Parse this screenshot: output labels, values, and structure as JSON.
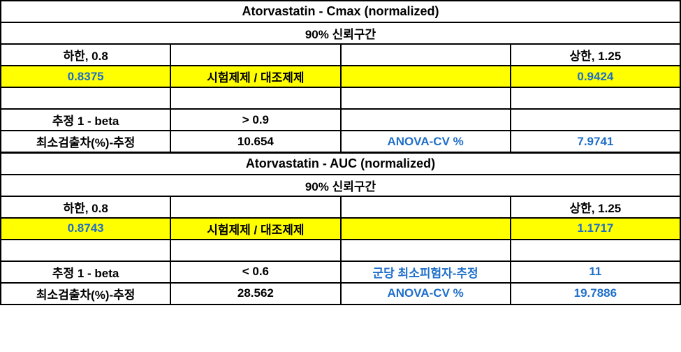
{
  "section1": {
    "title": "Atorvastatin - Cmax (normalized)",
    "ci_label": "90% 신뢰구간",
    "lower_label": "하한, 0.8",
    "upper_label": "상한, 1.25",
    "lower_val": "0.8375",
    "ratio_label": "시험제제 / 대조제제",
    "upper_val": "0.9424",
    "beta_label": "추정 1 - beta",
    "beta_val": "> 0.9",
    "mindet_label": "최소검출차(%)-추정",
    "mindet_val": "10.654",
    "anova_label": "ANOVA-CV %",
    "anova_val": "7.9741",
    "minsub_label": "",
    "minsub_val": ""
  },
  "section2": {
    "title": "Atorvastatin - AUC (normalized)",
    "ci_label": "90% 신뢰구간",
    "lower_label": "하한, 0.8",
    "upper_label": "상한, 1.25",
    "lower_val": "0.8743",
    "ratio_label": "시험제제 / 대조제제",
    "upper_val": "1.1717",
    "beta_label": "추정 1 - beta",
    "beta_val": "< 0.6",
    "minsub_label": "군당 최소피험자-추정",
    "minsub_val": "11",
    "mindet_label": "최소검출차(%)-추정",
    "mindet_val": "28.562",
    "anova_label": "ANOVA-CV %",
    "anova_val": "19.7886"
  },
  "colors": {
    "highlight": "#ffff00",
    "bluetext": "#1f6fca",
    "border": "#000000",
    "background": "#ffffff"
  }
}
